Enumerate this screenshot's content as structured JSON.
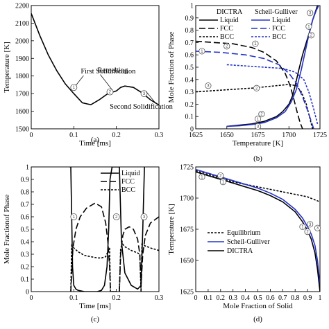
{
  "chart_data": [
    {
      "panel_label": "(a)",
      "type": "line",
      "xlabel": "Time [ms]",
      "ylabel": "Temperature [K]",
      "xlim": [
        0,
        0.3
      ],
      "ylim": [
        1500,
        2200
      ],
      "xticks": [
        "0",
        "0.1",
        "0.2",
        "0.3"
      ],
      "yticks": [
        "1500",
        "1600",
        "1700",
        "1800",
        "1900",
        "2000",
        "2100",
        "2200"
      ],
      "series": [
        {
          "x": [
            0,
            0.02,
            0.04,
            0.06,
            0.08,
            0.1,
            0.12,
            0.14,
            0.16,
            0.18,
            0.2,
            0.21,
            0.22,
            0.24,
            0.26,
            0.28,
            0.3
          ],
          "y": [
            2155,
            2030,
            1920,
            1830,
            1755,
            1700,
            1648,
            1637,
            1665,
            1700,
            1715,
            1735,
            1743,
            1735,
            1705,
            1665,
            1635
          ]
        }
      ],
      "annotations": [
        {
          "text": "First Solidification",
          "marker": "1",
          "x": 0.1,
          "y": 1735
        },
        {
          "text": "Remelting",
          "marker": "2",
          "x": 0.185,
          "y": 1710
        },
        {
          "text": "Second Solidification",
          "marker": "3",
          "x": 0.265,
          "y": 1700
        }
      ]
    },
    {
      "panel_label": "(b)",
      "type": "line",
      "xlabel": "Temperature [K]",
      "ylabel": "Mole Fraction of Phase",
      "xlim": [
        1625,
        1725
      ],
      "ylim": [
        0,
        1
      ],
      "xticks": [
        "1625",
        "1650",
        "1675",
        "1700",
        "1725"
      ],
      "yticks": [
        "0",
        "0.1",
        "0.2",
        "0.3",
        "0.4",
        "0.5",
        "0.6",
        "0.7",
        "0.8",
        "0.9",
        "1"
      ],
      "legend": {
        "groups": [
          "DICTRA",
          "Scheil-Gulliver"
        ],
        "entries": [
          "Liquid",
          "FCC",
          "BCC"
        ]
      },
      "series": [
        {
          "name": "Liquid",
          "group": "DICTRA",
          "color": "#000000",
          "dash": "solid",
          "x": [
            1650,
            1660,
            1670,
            1680,
            1690,
            1695,
            1700,
            1703,
            1705,
            1708,
            1711,
            1714,
            1717,
            1719,
            1721,
            1723
          ],
          "y": [
            0.02,
            0.03,
            0.04,
            0.06,
            0.1,
            0.14,
            0.2,
            0.27,
            0.35,
            0.48,
            0.6,
            0.7,
            0.8,
            0.88,
            0.94,
            1.0
          ]
        },
        {
          "name": "FCC",
          "group": "DICTRA",
          "color": "#000000",
          "dash": "long",
          "x": [
            1625,
            1640,
            1655,
            1670,
            1680,
            1690,
            1697,
            1701,
            1704,
            1707,
            1709,
            1711
          ],
          "y": [
            0.71,
            0.7,
            0.69,
            0.66,
            0.62,
            0.55,
            0.45,
            0.35,
            0.24,
            0.12,
            0.05,
            0.0
          ]
        },
        {
          "name": "BCC",
          "group": "DICTRA",
          "color": "#000000",
          "dash": "short",
          "x": [
            1625,
            1640,
            1655,
            1670,
            1680,
            1690,
            1700,
            1706,
            1710,
            1714,
            1717,
            1719
          ],
          "y": [
            0.3,
            0.31,
            0.32,
            0.33,
            0.34,
            0.35,
            0.36,
            0.35,
            0.3,
            0.2,
            0.08,
            0.0
          ]
        },
        {
          "name": "Liquid",
          "group": "Scheil-Gulliver",
          "color": "#2432c8",
          "dash": "solid",
          "x": [
            1650,
            1660,
            1670,
            1680,
            1690,
            1697,
            1702,
            1706,
            1710,
            1713,
            1716,
            1719,
            1722,
            1724
          ],
          "y": [
            0.02,
            0.025,
            0.035,
            0.05,
            0.09,
            0.14,
            0.22,
            0.32,
            0.48,
            0.62,
            0.76,
            0.88,
            0.96,
            1.0
          ]
        },
        {
          "name": "FCC",
          "group": "Scheil-Gulliver",
          "color": "#2432c8",
          "dash": "long",
          "x": [
            1625,
            1645,
            1665,
            1680,
            1692,
            1700,
            1706,
            1711,
            1715,
            1718,
            1720
          ],
          "y": [
            0.63,
            0.62,
            0.6,
            0.57,
            0.52,
            0.45,
            0.37,
            0.26,
            0.15,
            0.06,
            0.0
          ]
        },
        {
          "name": "BCC",
          "group": "Scheil-Gulliver",
          "color": "#2432c8",
          "dash": "short",
          "x": [
            1650,
            1665,
            1680,
            1695,
            1705,
            1712,
            1716,
            1720,
            1723
          ],
          "y": [
            0.52,
            0.51,
            0.5,
            0.49,
            0.46,
            0.4,
            0.3,
            0.16,
            0.04
          ]
        }
      ]
    },
    {
      "panel_label": "(c)",
      "type": "line",
      "xlabel": "Time [ms]",
      "ylabel": "Mole Fractionof Phase",
      "xlim": [
        0,
        0.3
      ],
      "ylim": [
        0,
        1
      ],
      "xticks": [
        "0",
        "0.1",
        "0.2",
        "0.3"
      ],
      "yticks": [
        "0",
        "0.1",
        "0.2",
        "0.3",
        "0.4",
        "0.5",
        "0.6",
        "0.7",
        "0.8",
        "0.9",
        "1"
      ],
      "legend": {
        "entries": [
          "Liquid",
          "FCC",
          "BCC"
        ]
      },
      "series": [
        {
          "name": "Liquid",
          "dash": "solid",
          "x": [
            0.09,
            0.093,
            0.095,
            0.097,
            0.1,
            0.105,
            0.11,
            0.125,
            0.14,
            0.155,
            0.165,
            0.172,
            0.178,
            0.182,
            0.185,
            0.19,
            0.2,
            0.207,
            0.212,
            0.22,
            0.235,
            0.25,
            0.258,
            0.262,
            0.266
          ],
          "y": [
            1.0,
            1.0,
            0.6,
            0.2,
            0.05,
            0.02,
            0.01,
            0.0,
            0.0,
            0.0,
            0.01,
            0.05,
            0.2,
            0.5,
            0.9,
            1.0,
            1.0,
            1.0,
            0.4,
            0.15,
            0.05,
            0.02,
            0.05,
            0.5,
            1.0
          ]
        },
        {
          "name": "FCC",
          "dash": "long",
          "x": [
            0.093,
            0.095,
            0.098,
            0.105,
            0.115,
            0.13,
            0.15,
            0.165,
            0.175,
            0.18,
            0.184,
            0.186,
            0.207,
            0.21,
            0.215,
            0.22,
            0.23,
            0.24,
            0.25,
            0.255,
            0.258,
            0.262,
            0.268,
            0.28,
            0.3
          ],
          "y": [
            0.0,
            0.15,
            0.35,
            0.5,
            0.6,
            0.67,
            0.71,
            0.68,
            0.55,
            0.4,
            0.2,
            0.0,
            0.0,
            0.3,
            0.45,
            0.5,
            0.52,
            0.5,
            0.42,
            0.3,
            0.05,
            0.3,
            0.45,
            0.55,
            0.6
          ]
        },
        {
          "name": "BCC",
          "dash": "short",
          "x": [
            0.093,
            0.095,
            0.1,
            0.11,
            0.125,
            0.14,
            0.155,
            0.165,
            0.175,
            0.18,
            0.184,
            0.186,
            0.207,
            0.21,
            0.215,
            0.22,
            0.235,
            0.25,
            0.255,
            0.258,
            0.26,
            0.265,
            0.28,
            0.3
          ],
          "y": [
            0.0,
            0.37,
            0.35,
            0.32,
            0.29,
            0.28,
            0.27,
            0.27,
            0.28,
            0.32,
            0.35,
            0.0,
            0.0,
            0.35,
            0.38,
            0.36,
            0.33,
            0.31,
            0.3,
            0.0,
            0.38,
            0.37,
            0.35,
            0.33
          ]
        }
      ],
      "annotations": [
        {
          "marker": "1",
          "x": 0.1,
          "y": 0.6
        },
        {
          "marker": "2",
          "x": 0.2,
          "y": 0.6
        },
        {
          "marker": "3",
          "x": 0.265,
          "y": 0.6
        }
      ]
    },
    {
      "panel_label": "(d)",
      "type": "line",
      "xlabel": "Mole Fraction of Solid",
      "ylabel": "Temperature [K]",
      "xlim": [
        0,
        1
      ],
      "ylim": [
        1625,
        1725
      ],
      "xticks": [
        "0",
        "0.1",
        "0.2",
        "0.3",
        "0.4",
        "0.5",
        "0.6",
        "0.7",
        "0.8",
        "0.9",
        "1"
      ],
      "yticks": [
        "1625",
        "1650",
        "1675",
        "1700",
        "1725"
      ],
      "legend": {
        "entries": [
          "Equilibrium",
          "Scheil-Gulliver",
          "DICTRA"
        ]
      },
      "series": [
        {
          "name": "Equilibrium",
          "color": "#000000",
          "dash": "short",
          "x": [
            0,
            0.1,
            0.2,
            0.3,
            0.4,
            0.5,
            0.6,
            0.7,
            0.8,
            0.9,
            0.95,
            1.0
          ],
          "y": [
            1722,
            1719,
            1716,
            1713,
            1711,
            1709,
            1707,
            1705,
            1703,
            1701,
            1699,
            1697
          ]
        },
        {
          "name": "Scheil-Gulliver",
          "color": "#2432c8",
          "dash": "solid",
          "x": [
            0,
            0.1,
            0.2,
            0.3,
            0.4,
            0.5,
            0.6,
            0.7,
            0.8,
            0.86,
            0.9,
            0.93,
            0.96,
            0.98,
            1.0
          ],
          "y": [
            1723,
            1720,
            1717,
            1714,
            1711,
            1708,
            1704,
            1699,
            1691,
            1684,
            1677,
            1671,
            1662,
            1650,
            1630
          ]
        },
        {
          "name": "DICTRA",
          "color": "#000000",
          "dash": "solid",
          "x": [
            0,
            0.1,
            0.2,
            0.3,
            0.4,
            0.5,
            0.6,
            0.7,
            0.8,
            0.86,
            0.9,
            0.93,
            0.96,
            0.98,
            1.0
          ],
          "y": [
            1721,
            1718,
            1715,
            1712,
            1709,
            1706,
            1702,
            1697,
            1689,
            1681,
            1674,
            1667,
            1656,
            1643,
            1625
          ]
        }
      ]
    }
  ]
}
